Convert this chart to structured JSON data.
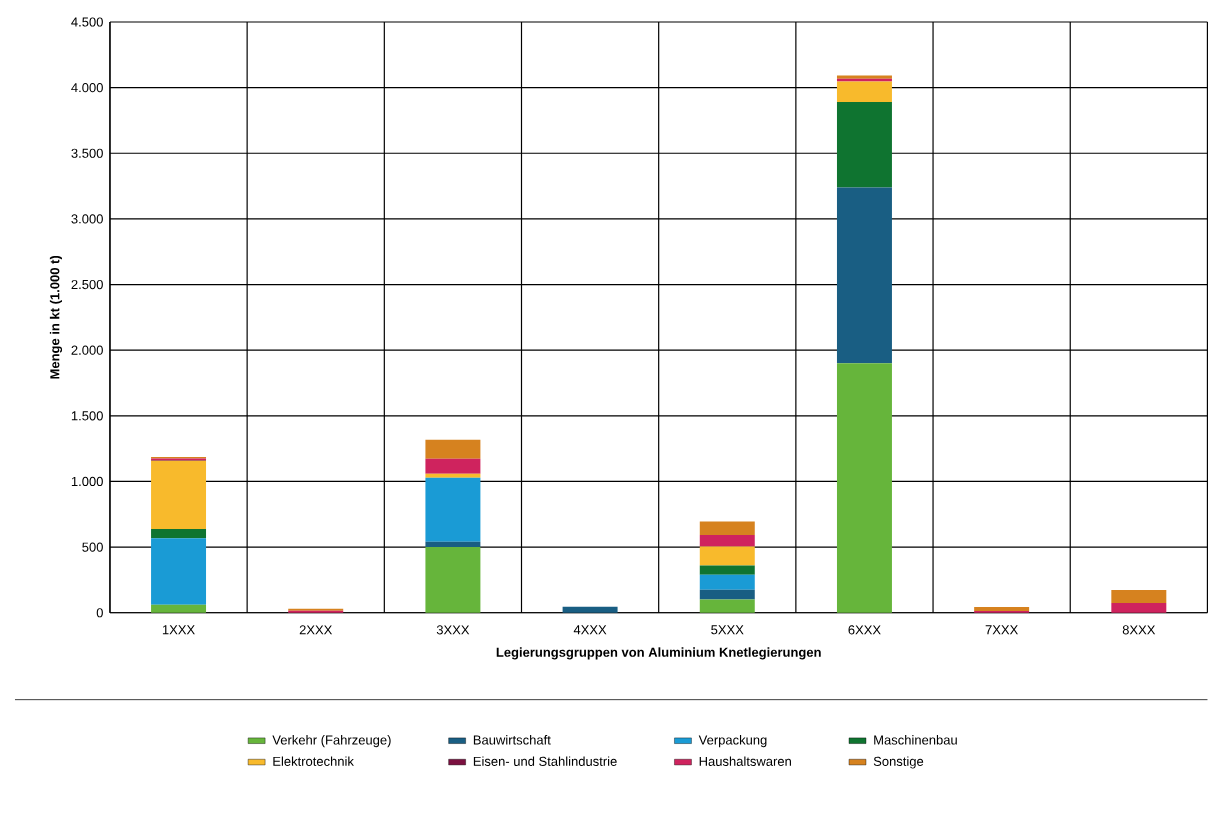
{
  "chart_data": {
    "type": "bar",
    "stacked": true,
    "xlabel": "Legierungsgruppen von Aluminium Knetlegierungen",
    "ylabel": "Menge in kt (1.000 t)",
    "categories": [
      "1XXX",
      "2XXX",
      "3XXX",
      "4XXX",
      "5XXX",
      "6XXX",
      "7XXX",
      "8XXX"
    ],
    "ylim": [
      0,
      4500
    ],
    "yticks": [
      0,
      500,
      {
        "value": 1000,
        "label": "1.000"
      },
      {
        "value": 1500,
        "label": "1.500"
      },
      {
        "value": 2000,
        "label": "2.000"
      },
      {
        "value": 2500,
        "label": "2.500"
      },
      {
        "value": 3000,
        "label": "3.000"
      },
      {
        "value": 3500,
        "label": "3.500"
      },
      {
        "value": 4000,
        "label": "4.000"
      },
      {
        "value": 4500,
        "label": "4.500"
      }
    ],
    "grid": true,
    "legend": "bottom",
    "series": [
      {
        "name": "Verkehr (Fahrzeuge)",
        "color": "#66b53b",
        "values": [
          60,
          0,
          500,
          0,
          100,
          1900,
          0,
          0
        ]
      },
      {
        "name": "Bauwirtschaft",
        "color": "#195e83",
        "values": [
          0,
          0,
          40,
          45,
          75,
          1340,
          0,
          0
        ]
      },
      {
        "name": "Verpackung",
        "color": "#1a9bd5",
        "values": [
          508,
          0,
          488,
          0,
          114,
          0,
          0,
          0
        ]
      },
      {
        "name": "Maschinenbau",
        "color": "#0f7430",
        "values": [
          70,
          0,
          0,
          0,
          71,
          650,
          0,
          0
        ]
      },
      {
        "name": "Elektrotechnik",
        "color": "#f8ba2c",
        "values": [
          520,
          0,
          31,
          0,
          145,
          157,
          0,
          0
        ]
      },
      {
        "name": "Eisen- und Stahlindustrie",
        "color": "#7b1040",
        "values": [
          5,
          0,
          0,
          0,
          0,
          0,
          0,
          0
        ]
      },
      {
        "name": "Haushaltswaren",
        "color": "#cf235e",
        "values": [
          12,
          15,
          114,
          0,
          88,
          20,
          13,
          74
        ]
      },
      {
        "name": "Sonstige",
        "color": "#d6821f",
        "values": [
          12,
          15,
          144,
          0,
          102,
          25,
          30,
          99
        ]
      }
    ]
  }
}
